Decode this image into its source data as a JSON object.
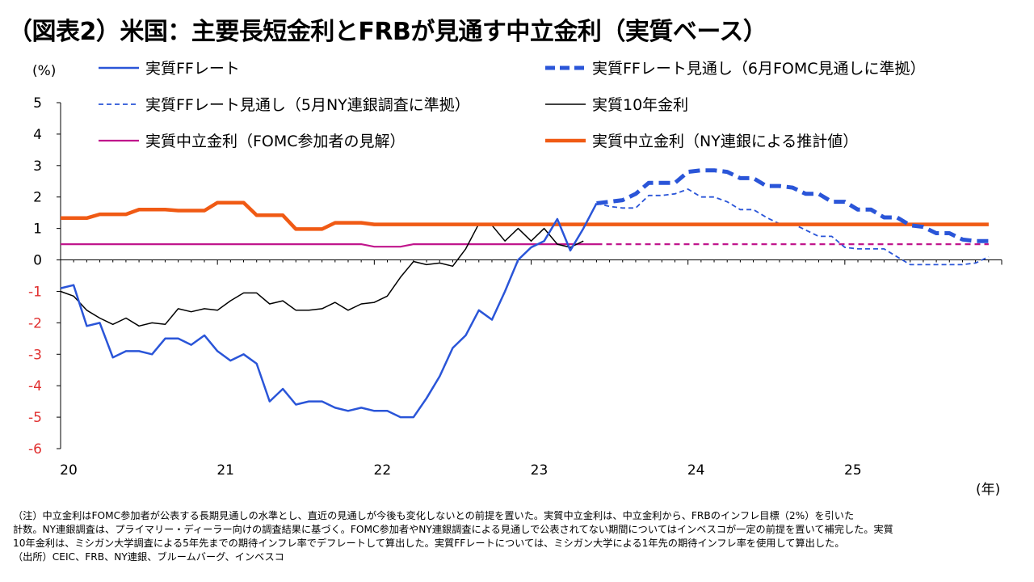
{
  "title": "（図表2）米国：主要長短金利とFRBが見通す中立金利（実質ベース）",
  "notes": [
    "（注）中立金利はFOMC参加者が公表する長期見通しの水準とし、直近の見通しが今後も変化しないとの前提を置いた。実質中立金利は、中立金利から、FRBのインフレ目標（2%）を引いた",
    "計数。NY連銀調査は、プライマリー・ディーラー向けの調査結果に基づく。FOMC参加者やNY連銀調査による見通しで公表されてない期間についてはインベスコが一定の前提を置いて補完した。実質",
    "10年金利は、ミシガン大学調査による5年先までの期待インフレ率でデフレートして算出した。実質FFレートについては、ミシガン大学による1年先の期待インフレ率を使用して算出した。",
    "（出所）CEIC、FRB、NY連銀、ブルームバーグ、インベスコ"
  ],
  "chart_data": {
    "type": "line",
    "ylabel": "(%)",
    "xlabel": "(年)",
    "ylim": [
      -6,
      5
    ],
    "yticks": [
      "5",
      "4",
      "3",
      "2",
      "1",
      "0",
      "-1",
      "-2",
      "-3",
      "-4",
      "-5",
      "-6"
    ],
    "xlim": [
      2020.0,
      2026.0
    ],
    "xticks": [
      {
        "label": "20",
        "x": 2020.0
      },
      {
        "label": "21",
        "x": 2021.0
      },
      {
        "label": "22",
        "x": 2022.0
      },
      {
        "label": "23",
        "x": 2023.0
      },
      {
        "label": "24",
        "x": 2024.0
      },
      {
        "label": "25",
        "x": 2025.0
      }
    ],
    "colors": {
      "ff": "#1f4fd8",
      "ny_proj": "#1f4fd8",
      "ten": "#000000",
      "neutral_fomc": "#c0158c",
      "neutral_ny": "#f05a14"
    },
    "series": [
      {
        "key": "ff",
        "name": "実質FFレート",
        "style": "solid",
        "width": 2.5,
        "color": "#2a55d8",
        "points": [
          [
            2020.0,
            -0.9
          ],
          [
            2020.083,
            -0.8
          ],
          [
            2020.167,
            -2.1
          ],
          [
            2020.25,
            -2.0
          ],
          [
            2020.333,
            -3.1
          ],
          [
            2020.417,
            -2.9
          ],
          [
            2020.5,
            -2.9
          ],
          [
            2020.583,
            -3.0
          ],
          [
            2020.667,
            -2.5
          ],
          [
            2020.75,
            -2.5
          ],
          [
            2020.833,
            -2.7
          ],
          [
            2020.917,
            -2.4
          ],
          [
            2021.0,
            -2.9
          ],
          [
            2021.083,
            -3.2
          ],
          [
            2021.167,
            -3.0
          ],
          [
            2021.25,
            -3.3
          ],
          [
            2021.333,
            -4.5
          ],
          [
            2021.417,
            -4.1
          ],
          [
            2021.5,
            -4.6
          ],
          [
            2021.583,
            -4.5
          ],
          [
            2021.667,
            -4.5
          ],
          [
            2021.75,
            -4.7
          ],
          [
            2021.833,
            -4.8
          ],
          [
            2021.917,
            -4.7
          ],
          [
            2022.0,
            -4.8
          ],
          [
            2022.083,
            -4.8
          ],
          [
            2022.167,
            -5.0
          ],
          [
            2022.25,
            -5.0
          ],
          [
            2022.333,
            -4.4
          ],
          [
            2022.417,
            -3.7
          ],
          [
            2022.5,
            -2.8
          ],
          [
            2022.583,
            -2.4
          ],
          [
            2022.667,
            -1.6
          ],
          [
            2022.75,
            -1.9
          ],
          [
            2022.833,
            -1.0
          ],
          [
            2022.917,
            0.0
          ],
          [
            2023.0,
            0.4
          ],
          [
            2023.083,
            0.6
          ],
          [
            2023.167,
            1.3
          ],
          [
            2023.25,
            0.3
          ],
          [
            2023.333,
            1.0
          ],
          [
            2023.417,
            1.8
          ]
        ]
      },
      {
        "key": "ff_fomc",
        "name": "実質FFレート見通し（6月FOMC見通しに準拠）",
        "style": "dash-thick",
        "width": 5,
        "color": "#2a55d8",
        "points": [
          [
            2023.417,
            1.8
          ],
          [
            2023.5,
            1.85
          ],
          [
            2023.583,
            1.9
          ],
          [
            2023.667,
            2.1
          ],
          [
            2023.75,
            2.45
          ],
          [
            2023.833,
            2.45
          ],
          [
            2023.917,
            2.45
          ],
          [
            2024.0,
            2.8
          ],
          [
            2024.083,
            2.85
          ],
          [
            2024.167,
            2.85
          ],
          [
            2024.25,
            2.8
          ],
          [
            2024.333,
            2.6
          ],
          [
            2024.417,
            2.6
          ],
          [
            2024.5,
            2.35
          ],
          [
            2024.583,
            2.35
          ],
          [
            2024.667,
            2.3
          ],
          [
            2024.75,
            2.1
          ],
          [
            2024.833,
            2.1
          ],
          [
            2024.917,
            1.85
          ],
          [
            2025.0,
            1.85
          ],
          [
            2025.083,
            1.6
          ],
          [
            2025.167,
            1.6
          ],
          [
            2025.25,
            1.35
          ],
          [
            2025.333,
            1.35
          ],
          [
            2025.417,
            1.1
          ],
          [
            2025.5,
            1.05
          ],
          [
            2025.583,
            0.85
          ],
          [
            2025.667,
            0.85
          ],
          [
            2025.75,
            0.65
          ],
          [
            2025.833,
            0.6
          ],
          [
            2025.917,
            0.6
          ]
        ]
      },
      {
        "key": "ff_ny",
        "name": "実質FFレート見通し（5月NY連銀調査に準拠）",
        "style": "dash-thin",
        "width": 1.8,
        "color": "#2a55d8",
        "points": [
          [
            2023.417,
            1.8
          ],
          [
            2023.5,
            1.7
          ],
          [
            2023.583,
            1.65
          ],
          [
            2023.667,
            1.65
          ],
          [
            2023.75,
            2.05
          ],
          [
            2023.833,
            2.05
          ],
          [
            2023.917,
            2.1
          ],
          [
            2024.0,
            2.25
          ],
          [
            2024.083,
            2.0
          ],
          [
            2024.167,
            2.0
          ],
          [
            2024.25,
            1.85
          ],
          [
            2024.333,
            1.6
          ],
          [
            2024.417,
            1.6
          ],
          [
            2024.5,
            1.35
          ],
          [
            2024.583,
            1.15
          ],
          [
            2024.667,
            1.15
          ],
          [
            2024.75,
            0.95
          ],
          [
            2024.833,
            0.75
          ],
          [
            2024.917,
            0.75
          ],
          [
            2025.0,
            0.4
          ],
          [
            2025.083,
            0.35
          ],
          [
            2025.167,
            0.35
          ],
          [
            2025.25,
            0.35
          ],
          [
            2025.333,
            0.1
          ],
          [
            2025.417,
            -0.15
          ],
          [
            2025.5,
            -0.15
          ],
          [
            2025.583,
            -0.15
          ],
          [
            2025.667,
            -0.15
          ],
          [
            2025.75,
            -0.15
          ],
          [
            2025.833,
            -0.1
          ],
          [
            2025.917,
            0.1
          ]
        ]
      },
      {
        "key": "ten",
        "name": "実質10年金利",
        "style": "solid",
        "width": 1.5,
        "color": "#000000",
        "points": [
          [
            2020.0,
            -1.0
          ],
          [
            2020.083,
            -1.15
          ],
          [
            2020.167,
            -1.6
          ],
          [
            2020.25,
            -1.85
          ],
          [
            2020.333,
            -2.05
          ],
          [
            2020.417,
            -1.85
          ],
          [
            2020.5,
            -2.1
          ],
          [
            2020.583,
            -2.0
          ],
          [
            2020.667,
            -2.05
          ],
          [
            2020.75,
            -1.55
          ],
          [
            2020.833,
            -1.65
          ],
          [
            2020.917,
            -1.55
          ],
          [
            2021.0,
            -1.6
          ],
          [
            2021.083,
            -1.3
          ],
          [
            2021.167,
            -1.05
          ],
          [
            2021.25,
            -1.05
          ],
          [
            2021.333,
            -1.4
          ],
          [
            2021.417,
            -1.3
          ],
          [
            2021.5,
            -1.6
          ],
          [
            2021.583,
            -1.6
          ],
          [
            2021.667,
            -1.55
          ],
          [
            2021.75,
            -1.35
          ],
          [
            2021.833,
            -1.6
          ],
          [
            2021.917,
            -1.4
          ],
          [
            2022.0,
            -1.35
          ],
          [
            2022.083,
            -1.15
          ],
          [
            2022.167,
            -0.55
          ],
          [
            2022.25,
            -0.05
          ],
          [
            2022.333,
            -0.15
          ],
          [
            2022.417,
            -0.1
          ],
          [
            2022.5,
            -0.2
          ],
          [
            2022.583,
            0.35
          ],
          [
            2022.667,
            1.15
          ],
          [
            2022.75,
            1.1
          ],
          [
            2022.833,
            0.6
          ],
          [
            2022.917,
            1.0
          ],
          [
            2023.0,
            0.6
          ],
          [
            2023.083,
            1.0
          ],
          [
            2023.167,
            0.5
          ],
          [
            2023.25,
            0.4
          ],
          [
            2023.333,
            0.6
          ]
        ]
      },
      {
        "key": "neutral_fomc",
        "name": "実質中立金利（FOMC参加者の見解）",
        "style": "solid-then-dash",
        "width": 2.2,
        "color": "#c0158c",
        "split": 2023.417,
        "points": [
          [
            2020.0,
            0.5
          ],
          [
            2021.917,
            0.5
          ],
          [
            2022.0,
            0.42
          ],
          [
            2022.167,
            0.42
          ],
          [
            2022.25,
            0.5
          ],
          [
            2025.917,
            0.5
          ]
        ]
      },
      {
        "key": "neutral_ny",
        "name": "実質中立金利（NY連銀による推計値）",
        "style": "solid",
        "width": 4.5,
        "color": "#f05a14",
        "points": [
          [
            2020.0,
            1.33
          ],
          [
            2020.083,
            1.33
          ],
          [
            2020.167,
            1.33
          ],
          [
            2020.25,
            1.45
          ],
          [
            2020.333,
            1.45
          ],
          [
            2020.417,
            1.45
          ],
          [
            2020.5,
            1.6
          ],
          [
            2020.583,
            1.6
          ],
          [
            2020.667,
            1.6
          ],
          [
            2020.75,
            1.57
          ],
          [
            2020.833,
            1.57
          ],
          [
            2020.917,
            1.57
          ],
          [
            2021.0,
            1.82
          ],
          [
            2021.083,
            1.82
          ],
          [
            2021.167,
            1.82
          ],
          [
            2021.25,
            1.42
          ],
          [
            2021.333,
            1.42
          ],
          [
            2021.417,
            1.42
          ],
          [
            2021.5,
            0.98
          ],
          [
            2021.583,
            0.98
          ],
          [
            2021.667,
            0.98
          ],
          [
            2021.75,
            1.18
          ],
          [
            2021.833,
            1.18
          ],
          [
            2021.917,
            1.18
          ],
          [
            2022.0,
            1.13
          ],
          [
            2025.917,
            1.13
          ]
        ]
      }
    ],
    "legend": [
      {
        "key": "ff",
        "label": "実質FFレート"
      },
      {
        "key": "ff_fomc",
        "label": "実質FFレート見通し（6月FOMC見通しに準拠）"
      },
      {
        "key": "ff_ny",
        "label": "実質FFレート見通し（5月NY連銀調査に準拠）"
      },
      {
        "key": "ten",
        "label": "実質10年金利"
      },
      {
        "key": "neutral_fomc",
        "label": "実質中立金利（FOMC参加者の見解）"
      },
      {
        "key": "neutral_ny",
        "label": "実質中立金利（NY連銀による推計値）"
      }
    ]
  }
}
